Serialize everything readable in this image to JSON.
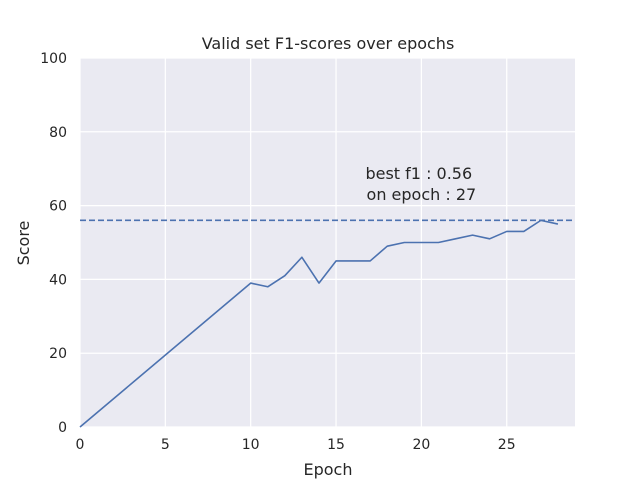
{
  "chart_data": {
    "type": "line",
    "title": "Valid set F1-scores over epochs",
    "xlabel": "Epoch",
    "ylabel": "Score",
    "xlim": [
      0,
      29
    ],
    "ylim": [
      0,
      100
    ],
    "xticks": [
      0,
      5,
      10,
      15,
      20,
      25
    ],
    "yticks": [
      0,
      20,
      40,
      60,
      80,
      100
    ],
    "grid": true,
    "background_color": "#eaeaf2",
    "grid_color": "#ffffff",
    "series": [
      {
        "color": "#4c72b0",
        "x": [
          0,
          10,
          11,
          12,
          13,
          14,
          15,
          16,
          17,
          18,
          19,
          20,
          21,
          22,
          23,
          24,
          25,
          26,
          27,
          28
        ],
        "values": [
          0,
          39,
          38,
          41,
          46,
          39,
          45,
          45,
          45,
          49,
          50,
          50,
          50,
          51,
          52,
          51,
          53,
          53,
          56,
          55
        ]
      }
    ],
    "reference_line": {
      "y": 56,
      "style": "dashed",
      "color": "#4c72b0"
    },
    "annotation": {
      "lines": [
        "best f1 : 0.56",
        " on epoch : 27"
      ],
      "x": 20,
      "y": 64
    }
  }
}
